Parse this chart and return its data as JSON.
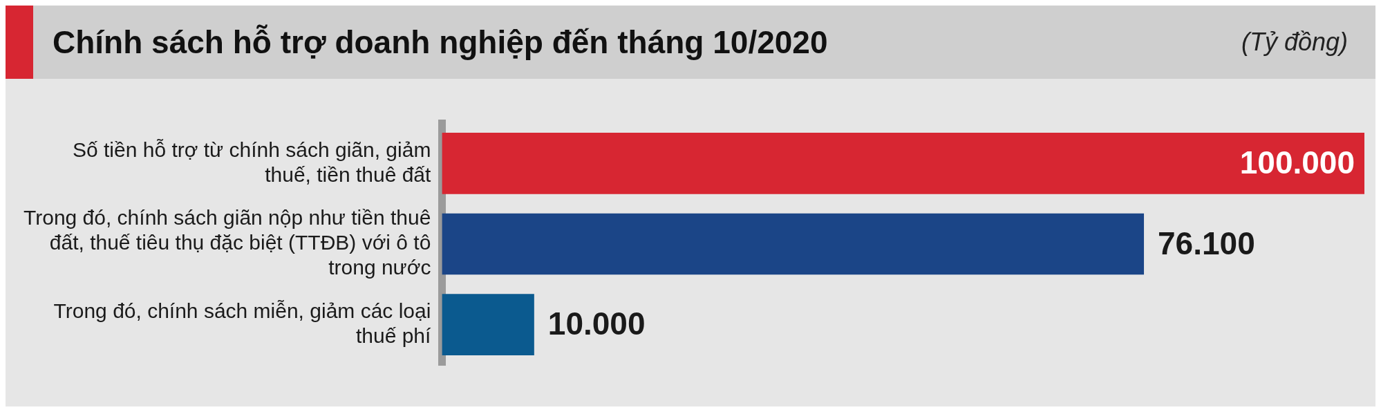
{
  "chart_data": {
    "type": "bar",
    "orientation": "horizontal",
    "title": "Chính sách hỗ trợ doanh nghiệp đến tháng 10/2020",
    "subtitle": "(Tỷ đồng)",
    "categories": [
      "Số tiền hỗ trợ từ chính sách giãn, giảm thuế, tiền thuê đất",
      "Trong đó, chính sách giãn nộp như tiền thuê đất, thuế tiêu thụ đặc biệt (TTĐB) với ô tô trong nước",
      "Trong đó, chính sách miễn, giảm các loại thuế phí"
    ],
    "values": [
      100000,
      76100,
      10000
    ],
    "colors": [
      "#d72632",
      "#1b4587",
      "#0b5a8f"
    ],
    "value_labels": [
      "100.000",
      "76.100",
      "10.000"
    ]
  }
}
